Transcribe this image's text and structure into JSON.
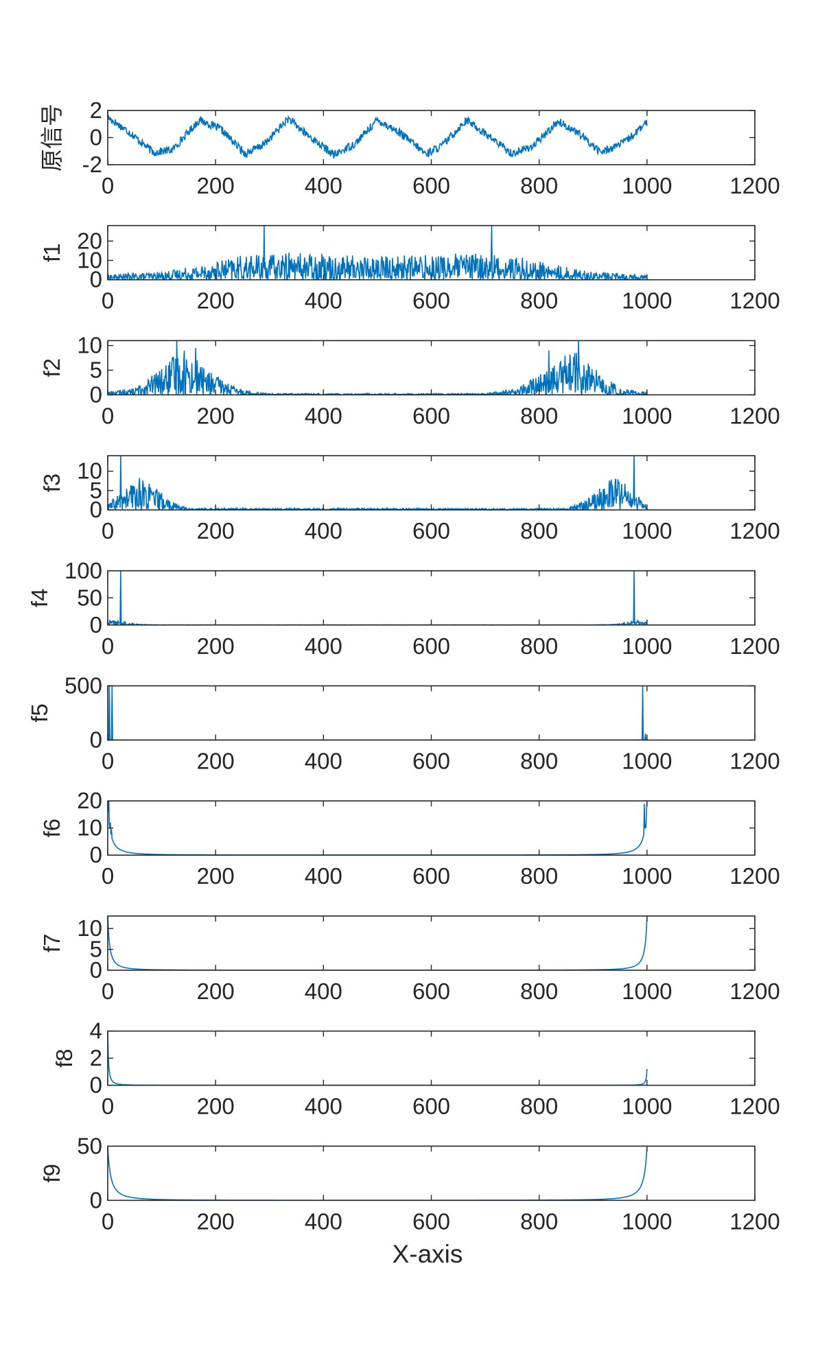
{
  "figure": {
    "xlabel": "X-axis"
  },
  "colors": {
    "series": "#0072BD",
    "axes": "#262626",
    "background": "#ffffff"
  },
  "chart_data": [
    {
      "type": "line",
      "ylabel": "原信号",
      "xlim": [
        0,
        1200
      ],
      "ylim": [
        -2,
        2
      ],
      "xticks": [
        "0",
        "200",
        "400",
        "600",
        "800",
        "1000",
        "1200"
      ],
      "yticks": [
        "-2",
        "0",
        "2"
      ],
      "series": [
        {
          "shape": "sine-noise",
          "x_range": [
            0,
            1000
          ],
          "period": 167,
          "amplitude": 1.2,
          "noise": 0.3,
          "points": [
            [
              0,
              1.5
            ],
            [
              40,
              0.4
            ],
            [
              85,
              -1.1
            ],
            [
              120,
              -0.9
            ],
            [
              170,
              1.3
            ],
            [
              210,
              0.6
            ],
            [
              255,
              -1.2
            ],
            [
              290,
              -0.5
            ],
            [
              335,
              1.4
            ],
            [
              370,
              0.2
            ],
            [
              420,
              -1.3
            ],
            [
              460,
              -0.4
            ],
            [
              500,
              1.3
            ],
            [
              540,
              0.4
            ],
            [
              590,
              -1.2
            ],
            [
              620,
              -0.6
            ],
            [
              665,
              1.3
            ],
            [
              700,
              0.3
            ],
            [
              750,
              -1.2
            ],
            [
              790,
              -0.6
            ],
            [
              835,
              1.2
            ],
            [
              870,
              0.4
            ],
            [
              915,
              -1.1
            ],
            [
              960,
              -0.3
            ],
            [
              1000,
              1.1
            ]
          ]
        }
      ]
    },
    {
      "type": "line",
      "ylabel": "f1",
      "xlim": [
        0,
        1200
      ],
      "ylim": [
        0,
        28
      ],
      "xticks": [
        "0",
        "200",
        "400",
        "600",
        "800",
        "1000",
        "1200"
      ],
      "yticks": [
        "0",
        "10",
        "20"
      ],
      "series": [
        {
          "shape": "noisy-band",
          "x_range": [
            0,
            1000
          ],
          "envelope": [
            [
              0,
              2
            ],
            [
              100,
              3
            ],
            [
              180,
              6
            ],
            [
              250,
              9
            ],
            [
              350,
              10
            ],
            [
              500,
              9
            ],
            [
              650,
              10
            ],
            [
              750,
              9
            ],
            [
              820,
              6
            ],
            [
              900,
              3
            ],
            [
              1000,
              2
            ]
          ],
          "spikes": [
            [
              290,
              28
            ],
            [
              712,
              28
            ],
            [
              336,
              14
            ],
            [
              400,
              12
            ],
            [
              665,
              13
            ]
          ]
        }
      ]
    },
    {
      "type": "line",
      "ylabel": "f2",
      "xlim": [
        0,
        1200
      ],
      "ylim": [
        0,
        11
      ],
      "xticks": [
        "0",
        "200",
        "400",
        "600",
        "800",
        "1000",
        "1200"
      ],
      "yticks": [
        "0",
        "5",
        "10"
      ],
      "series": [
        {
          "shape": "noisy-band",
          "x_range": [
            0,
            1000
          ],
          "envelope": [
            [
              0,
              0.5
            ],
            [
              50,
              1
            ],
            [
              100,
              4
            ],
            [
              140,
              7
            ],
            [
              180,
              4
            ],
            [
              240,
              1
            ],
            [
              300,
              0.2
            ],
            [
              700,
              0.2
            ],
            [
              760,
              1
            ],
            [
              820,
              4
            ],
            [
              860,
              7
            ],
            [
              900,
              4
            ],
            [
              950,
              1
            ],
            [
              1000,
              0.3
            ]
          ],
          "spikes": [
            [
              128,
              11
            ],
            [
              163,
              9.5
            ],
            [
              818,
              9
            ],
            [
              873,
              11
            ]
          ]
        }
      ]
    },
    {
      "type": "line",
      "ylabel": "f3",
      "xlim": [
        0,
        1200
      ],
      "ylim": [
        0,
        14
      ],
      "xticks": [
        "0",
        "200",
        "400",
        "600",
        "800",
        "1000",
        "1200"
      ],
      "yticks": [
        "0",
        "5",
        "10"
      ],
      "series": [
        {
          "shape": "noisy-band",
          "x_range": [
            0,
            1000
          ],
          "envelope": [
            [
              0,
              1
            ],
            [
              30,
              4
            ],
            [
              60,
              6.5
            ],
            [
              90,
              4
            ],
            [
              120,
              1.5
            ],
            [
              150,
              0.3
            ],
            [
              850,
              0.3
            ],
            [
              880,
              1.5
            ],
            [
              910,
              4
            ],
            [
              940,
              6.5
            ],
            [
              970,
              4
            ],
            [
              1000,
              1
            ]
          ],
          "spikes": [
            [
              24,
              14
            ],
            [
              976,
              14
            ]
          ]
        }
      ]
    },
    {
      "type": "line",
      "ylabel": "f4",
      "xlim": [
        0,
        1200
      ],
      "ylim": [
        0,
        100
      ],
      "xticks": [
        "0",
        "200",
        "400",
        "600",
        "800",
        "1000",
        "1200"
      ],
      "yticks": [
        "0",
        "50",
        "100"
      ],
      "series": [
        {
          "shape": "noisy-band",
          "x_range": [
            0,
            1000
          ],
          "envelope": [
            [
              0,
              7
            ],
            [
              15,
              7
            ],
            [
              35,
              4
            ],
            [
              60,
              1
            ],
            [
              100,
              0.2
            ],
            [
              900,
              0.2
            ],
            [
              940,
              1
            ],
            [
              965,
              4
            ],
            [
              985,
              7
            ],
            [
              1000,
              7
            ]
          ],
          "spikes": [
            [
              24,
              100
            ],
            [
              976,
              100
            ]
          ]
        }
      ]
    },
    {
      "type": "line",
      "ylabel": "f5",
      "xlim": [
        0,
        1200
      ],
      "ylim": [
        0,
        500
      ],
      "xticks": [
        "0",
        "200",
        "400",
        "600",
        "800",
        "1000",
        "1200"
      ],
      "yticks": [
        "0",
        "500"
      ],
      "series": [
        {
          "shape": "noisy-band",
          "x_range": [
            0,
            1000
          ],
          "envelope": [
            [
              0,
              2
            ],
            [
              20,
              1
            ],
            [
              50,
              0.3
            ],
            [
              950,
              0.3
            ],
            [
              980,
              1
            ],
            [
              1000,
              2
            ]
          ],
          "spikes": [
            [
              3,
              500
            ],
            [
              8,
              500
            ],
            [
              992,
              500
            ],
            [
              997,
              60
            ]
          ]
        }
      ]
    },
    {
      "type": "line",
      "ylabel": "f6",
      "xlim": [
        0,
        1200
      ],
      "ylim": [
        0,
        20
      ],
      "xticks": [
        "0",
        "200",
        "400",
        "600",
        "800",
        "1000",
        "1200"
      ],
      "yticks": [
        "0",
        "10",
        "20"
      ],
      "series": [
        {
          "shape": "decay",
          "x_range": [
            0,
            1000
          ],
          "peak": 20,
          "width": 5,
          "spikes": [
            [
              2,
              20
            ],
            [
              5,
              12
            ],
            [
              7,
              9.5
            ],
            [
              995,
              19
            ],
            [
              998,
              10
            ]
          ]
        }
      ]
    },
    {
      "type": "line",
      "ylabel": "f7",
      "xlim": [
        0,
        1200
      ],
      "ylim": [
        0,
        13
      ],
      "xticks": [
        "0",
        "200",
        "400",
        "600",
        "800",
        "1000",
        "1200"
      ],
      "yticks": [
        "0",
        "5",
        "10"
      ],
      "series": [
        {
          "shape": "decay",
          "x_range": [
            0,
            1000
          ],
          "peak": 13,
          "width": 4
        }
      ]
    },
    {
      "type": "line",
      "ylabel": "f8",
      "xlim": [
        0,
        1200
      ],
      "ylim": [
        0,
        4
      ],
      "xticks": [
        "0",
        "200",
        "400",
        "600",
        "800",
        "1000",
        "1200"
      ],
      "yticks": [
        "0",
        "2",
        "4"
      ],
      "series": [
        {
          "shape": "decay-asym",
          "x_range": [
            0,
            1000
          ],
          "left_peak": 4,
          "right_peak": 1.2,
          "width": 1.5
        }
      ]
    },
    {
      "type": "line",
      "ylabel": "f9",
      "xlim": [
        0,
        1200
      ],
      "ylim": [
        0,
        50
      ],
      "xticks": [
        "0",
        "200",
        "400",
        "600",
        "800",
        "1000",
        "1200"
      ],
      "yticks": [
        "0",
        "50"
      ],
      "series": [
        {
          "shape": "decay",
          "x_range": [
            0,
            1000
          ],
          "peak": 50,
          "width": 6
        }
      ]
    }
  ]
}
